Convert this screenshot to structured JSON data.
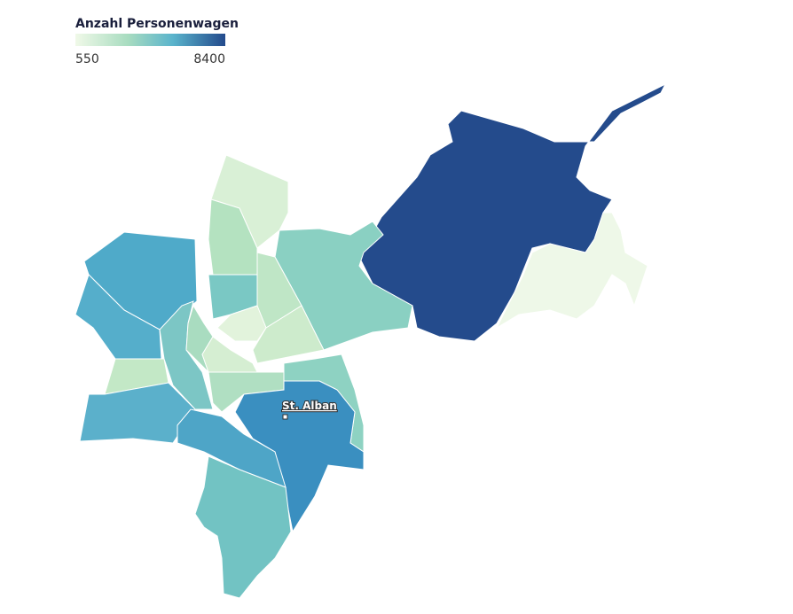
{
  "legend": {
    "title": "Anzahl Personenwagen",
    "min": 550,
    "max": 8400
  },
  "label": "St. Alban"
}
